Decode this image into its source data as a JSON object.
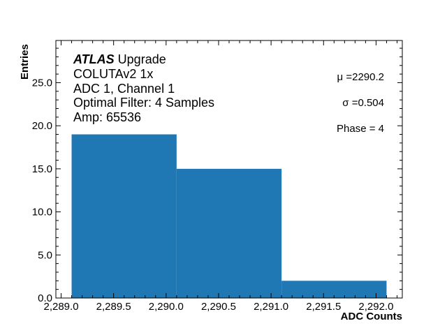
{
  "chart_data": {
    "type": "bar",
    "title": "",
    "xlabel": "ADC Counts",
    "ylabel": "Entries",
    "bins": [
      {
        "left": 2289.1,
        "right": 2290.1,
        "count": 19
      },
      {
        "left": 2290.1,
        "right": 2291.1,
        "count": 15
      },
      {
        "left": 2291.1,
        "right": 2292.1,
        "count": 2
      }
    ],
    "categories": [
      "2289.1-2290.1",
      "2290.1-2291.1",
      "2291.1-2292.1"
    ],
    "values": [
      19,
      15,
      2
    ],
    "xlim": [
      2288.95,
      2292.25
    ],
    "ylim": [
      0,
      29.9
    ],
    "xticks": [
      "2,289.0",
      "2,289.5",
      "2,290.0",
      "2,290.5",
      "2,291.0",
      "2,291.5",
      "2,292.0"
    ],
    "xtick_values": [
      2289.0,
      2289.5,
      2290.0,
      2290.5,
      2291.0,
      2291.5,
      2292.0
    ],
    "yticks": [
      "0.0",
      "5.0",
      "10.0",
      "15.0",
      "20.0",
      "25.0"
    ],
    "ytick_values": [
      0,
      5,
      10,
      15,
      20,
      25
    ],
    "bar_color": "#1f77b4",
    "grid": false,
    "annotations": {
      "atlas": "ATLAS",
      "atlas_suffix": " Upgrade",
      "lines": [
        "COLUTAv2 1x",
        "ADC 1, Channel 1",
        "Optimal Filter: 4 Samples",
        "Amp: 65536"
      ],
      "mu": "μ =2290.2",
      "sigma": "σ =0.504",
      "phase": "Phase = 4"
    }
  }
}
